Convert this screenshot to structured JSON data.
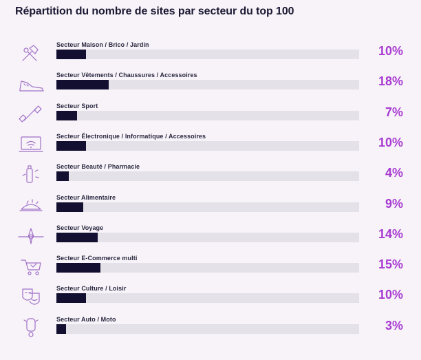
{
  "title": "Répartition du nombre de sites par secteur du top 100",
  "chart_data": {
    "type": "bar",
    "orientation": "horizontal",
    "title": "Répartition du nombre de sites par secteur du top 100",
    "unit": "%",
    "xlim": [
      0,
      100
    ],
    "bar_color": "#120f31",
    "track_color": "#e4e1e8",
    "value_color": "#a83bd1",
    "categories": [
      "Secteur Maison / Brico / Jardin",
      "Secteur Vêtements /  Chaussures / Accessoires",
      "Secteur Sport",
      "Secteur Électronique / Informatique / Accessoires",
      "Secteur Beauté / Pharmacie",
      "Secteur Alimentaire",
      "Secteur Voyage",
      "Secteur E-Commerce multi",
      "Secteur Culture / Loisir",
      "Secteur Auto / Moto"
    ],
    "values": [
      10,
      18,
      7,
      10,
      4,
      9,
      14,
      15,
      10,
      3
    ],
    "value_labels": [
      "10%",
      "18%",
      "7%",
      "10%",
      "4%",
      "9%",
      "14%",
      "15%",
      "10%",
      "3%"
    ],
    "icons": [
      "tools-icon",
      "sneaker-icon",
      "dumbbell-icon",
      "laptop-wifi-icon",
      "cosmetics-icon",
      "food-icon",
      "airplane-icon",
      "shopping-cart-icon",
      "theater-masks-icon",
      "scooter-icon"
    ]
  }
}
